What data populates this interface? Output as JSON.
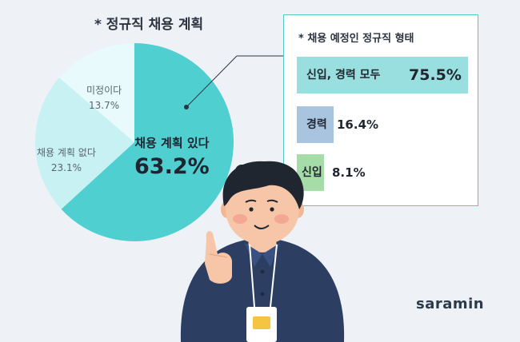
{
  "chart_data": [
    {
      "type": "pie",
      "title": "* 정규직 채용 계획",
      "slices": [
        {
          "name": "채용 계획 있다",
          "value": 63.2,
          "label": "63.2%",
          "color": "#4fcfd0"
        },
        {
          "name": "채용 계획 없다",
          "value": 23.1,
          "label": "23.1%",
          "color": "#c8f1f3"
        },
        {
          "name": "미정이다",
          "value": 13.7,
          "label": "13.7%",
          "color": "#e8fafb"
        }
      ]
    },
    {
      "type": "bar",
      "orientation": "horizontal",
      "title": "* 채용 예정인 정규직 형태",
      "categories": [
        "신입, 경력 모두",
        "경력",
        "신입"
      ],
      "values": [
        75.5,
        16.4,
        8.1
      ],
      "value_labels": [
        "75.5%",
        "16.4%",
        "8.1%"
      ],
      "colors": [
        "#9adfe0",
        "#a9c4df",
        "#a6dca8"
      ]
    }
  ],
  "brand": {
    "logo_text": "saramin"
  },
  "colors": {
    "panel_border": "#55c9c8",
    "background": "#eef1f6"
  }
}
